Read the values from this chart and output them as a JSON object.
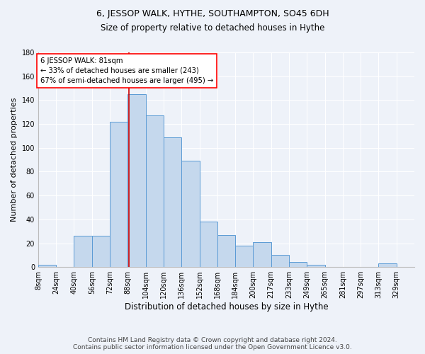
{
  "title_line1": "6, JESSOP WALK, HYTHE, SOUTHAMPTON, SO45 6DH",
  "title_line2": "Size of property relative to detached houses in Hythe",
  "xlabel": "Distribution of detached houses by size in Hythe",
  "ylabel": "Number of detached properties",
  "categories": [
    "8sqm",
    "24sqm",
    "40sqm",
    "56sqm",
    "72sqm",
    "88sqm",
    "104sqm",
    "120sqm",
    "136sqm",
    "152sqm",
    "168sqm",
    "184sqm",
    "200sqm",
    "217sqm",
    "233sqm",
    "249sqm",
    "265sqm",
    "281sqm",
    "297sqm",
    "313sqm",
    "329sqm"
  ],
  "values": [
    2,
    0,
    26,
    26,
    122,
    145,
    127,
    109,
    89,
    38,
    27,
    18,
    21,
    10,
    4,
    2,
    0,
    0,
    0,
    3,
    0
  ],
  "bar_color": "#c5d8ed",
  "bar_edge_color": "#5b9bd5",
  "annotation_box_text": [
    "6 JESSOP WALK: 81sqm",
    "← 33% of detached houses are smaller (243)",
    "67% of semi-detached houses are larger (495) →"
  ],
  "vline_x": 81,
  "vline_color": "#cc0000",
  "background_color": "#eef2f9",
  "ylim": [
    0,
    180
  ],
  "yticks": [
    0,
    20,
    40,
    60,
    80,
    100,
    120,
    140,
    160,
    180
  ],
  "footnote": "Contains HM Land Registry data © Crown copyright and database right 2024.\nContains public sector information licensed under the Open Government Licence v3.0.",
  "bin_width": 16,
  "title_fontsize": 9,
  "subtitle_fontsize": 8.5,
  "xlabel_fontsize": 8.5,
  "ylabel_fontsize": 8,
  "tick_fontsize": 7,
  "footnote_fontsize": 6.5
}
